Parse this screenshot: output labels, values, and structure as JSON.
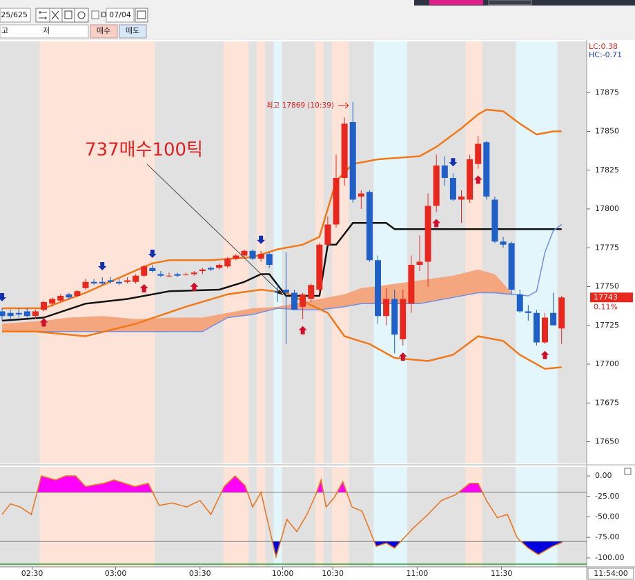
{
  "toolbar": {
    "code_field": "25/625",
    "period_label": "D",
    "date": "07/04",
    "high_label": "고",
    "low_label": "저",
    "buy_button": "매수",
    "sell_button": "매도"
  },
  "chart_data": [
    {
      "type": "candlestick",
      "xlim": [
        -0.25,
        70
      ],
      "ylim": [
        17636,
        17908
      ],
      "yticks": [
        17650,
        17675,
        17700,
        17725,
        17750,
        17775,
        17800,
        17825,
        17850,
        17875
      ],
      "xticks": [
        {
          "value": 3.6,
          "label": "02:30"
        },
        {
          "value": 13.6,
          "label": "03:00"
        },
        {
          "value": 23.7,
          "label": "03:30"
        },
        {
          "value": 33.6,
          "label": "10:00"
        },
        {
          "value": 39.6,
          "label": "10:30"
        },
        {
          "value": 49.7,
          "label": "11:00"
        },
        {
          "value": 59.8,
          "label": "11:30"
        }
      ],
      "time_label": "11:54:00",
      "lc": "LC:0.38",
      "hc": "HC:-0.71",
      "last_price": 17743,
      "change": "0.11%",
      "annotation": "737매수100틱",
      "high_note": "최고 17869 (10:39)",
      "up_color": "#e8281e",
      "down_color": "#1f5fc8",
      "open": [
        17734,
        17733,
        17733,
        17734,
        17731,
        17735,
        17739,
        17741,
        17745,
        17744,
        17749,
        17753,
        17753,
        17754,
        17753,
        17753,
        17753,
        17757,
        17762,
        17758,
        17757,
        17758,
        17758,
        17758,
        17760,
        17762,
        17762,
        17763,
        17768,
        17770,
        17773,
        17768,
        17771,
        17747,
        17748,
        17746,
        17737,
        17742,
        17748,
        17777,
        17790,
        17820,
        17856,
        17808,
        17811,
        17767,
        17731,
        17742,
        17716,
        17739,
        17764,
        17766,
        17802,
        17828,
        17820,
        17806,
        17806,
        17829,
        17843,
        17806,
        17779,
        17778,
        17745,
        17734,
        17733,
        17714,
        17733,
        17723
      ],
      "high": [
        17736,
        17735,
        17736,
        17736,
        17735,
        17741,
        17743,
        17745,
        17746,
        17748,
        17755,
        17755,
        17756,
        17756,
        17755,
        17756,
        17758,
        17764,
        17764,
        17760,
        17759,
        17759,
        17759,
        17760,
        17762,
        17763,
        17765,
        17769,
        17771,
        17774,
        17774,
        17773,
        17772,
        17752,
        17772,
        17748,
        17746,
        17752,
        17778,
        17795,
        17835,
        17859,
        17869,
        17812,
        17812,
        17770,
        17749,
        17748,
        17748,
        17770,
        17783,
        17810,
        17835,
        17834,
        17823,
        17812,
        17835,
        17847,
        17844,
        17808,
        17782,
        17779,
        17748,
        17738,
        17735,
        17733,
        17746,
        17744
      ],
      "low": [
        17728,
        17729,
        17730,
        17730,
        17729,
        17734,
        17737,
        17740,
        17742,
        17743,
        17748,
        17751,
        17751,
        17752,
        17751,
        17752,
        17752,
        17756,
        17759,
        17756,
        17756,
        17756,
        17757,
        17757,
        17758,
        17760,
        17761,
        17762,
        17767,
        17769,
        17767,
        17766,
        17762,
        17740,
        17713,
        17735,
        17729,
        17740,
        17746,
        17776,
        17788,
        17815,
        17804,
        17800,
        17766,
        17726,
        17725,
        17707,
        17712,
        17733,
        17760,
        17750,
        17798,
        17815,
        17805,
        17791,
        17804,
        17826,
        17806,
        17778,
        17775,
        17745,
        17733,
        17728,
        17712,
        17713,
        17725,
        17713
      ],
      "close": [
        17731,
        17731,
        17732,
        17731,
        17734,
        17740,
        17742,
        17744,
        17743,
        17747,
        17753,
        17752,
        17752,
        17753,
        17752,
        17754,
        17757,
        17763,
        17760,
        17757,
        17757,
        17757,
        17758,
        17759,
        17761,
        17761,
        17764,
        17768,
        17770,
        17773,
        17768,
        17771,
        17764,
        17746,
        17746,
        17735,
        17745,
        17751,
        17777,
        17790,
        17820,
        17855,
        17806,
        17810,
        17767,
        17731,
        17742,
        17719,
        17742,
        17764,
        17766,
        17802,
        17828,
        17820,
        17806,
        17808,
        17832,
        17842,
        17808,
        17779,
        17777,
        17748,
        17734,
        17733,
        17714,
        17730,
        17725,
        17743
      ],
      "buy_signals": [
        5,
        17,
        23,
        36,
        48,
        52,
        57,
        65
      ],
      "sell_signals": [
        0,
        12,
        18,
        31,
        54
      ],
      "cloud": {
        "color": "#f4a67f",
        "x": [
          0,
          5,
          8,
          12,
          16,
          20,
          24,
          27,
          30,
          33,
          36,
          38,
          41,
          43,
          46,
          50,
          54,
          57,
          59,
          61
        ],
        "span_a": [
          17726,
          17728,
          17730,
          17731,
          17729,
          17730,
          17730,
          17733,
          17736,
          17737,
          17740,
          17742,
          17745,
          17749,
          17751,
          17754,
          17757,
          17761,
          17758,
          17746
        ],
        "span_b": [
          17721,
          17721,
          17721,
          17721,
          17721,
          17721,
          17721,
          17730,
          17732,
          17736,
          17735,
          17735,
          17737,
          17739,
          17739,
          17739,
          17743,
          17746,
          17746,
          17745
        ],
        "span_b_color": "#6f8fe6"
      },
      "upper_band": {
        "color": "#f07818",
        "x": [
          0,
          5,
          10,
          15,
          18,
          20,
          25,
          30,
          33,
          36,
          38,
          40,
          42,
          45,
          50,
          52,
          55,
          57,
          58,
          60,
          62,
          64,
          66,
          67
        ],
        "values": [
          17736,
          17736,
          17746,
          17758,
          17765,
          17767,
          17767,
          17769,
          17774,
          17777,
          17782,
          17818,
          17829,
          17832,
          17834,
          17840,
          17852,
          17861,
          17864,
          17863,
          17855,
          17848,
          17850,
          17850
        ]
      },
      "lower_band": {
        "color": "#f07818",
        "x": [
          0,
          4,
          10,
          16,
          22,
          27,
          31,
          34,
          37,
          39,
          41,
          44,
          47,
          51,
          54,
          57,
          60,
          62,
          65,
          67
        ],
        "values": [
          17721,
          17721,
          17718,
          17726,
          17737,
          17745,
          17748,
          17746,
          17738,
          17733,
          17718,
          17713,
          17704,
          17702,
          17706,
          17718,
          17715,
          17706,
          17697,
          17698
        ]
      },
      "middle_line": {
        "color": "#111111",
        "x": [
          0,
          5,
          10,
          15,
          20,
          26,
          29,
          31,
          32,
          34,
          38,
          39,
          40,
          42,
          46,
          47,
          67
        ],
        "values": [
          17728,
          17730,
          17739,
          17742,
          17747,
          17748,
          17753,
          17758,
          17758,
          17744,
          17744,
          17777,
          17777,
          17791,
          17791,
          17787,
          17787
        ]
      },
      "lagging_line": {
        "color": "#6f8fe6",
        "x": [
          59,
          61,
          63,
          64,
          65,
          66,
          67
        ],
        "values": [
          17746,
          17745,
          17744,
          17747,
          17772,
          17786,
          17790
        ]
      },
      "shading": [
        {
          "from": 4.5,
          "to": 18.3,
          "color": "#fde3d8"
        },
        {
          "from": 26.5,
          "to": 29.5,
          "color": "#fde3d8"
        },
        {
          "from": 30.5,
          "to": 31.5,
          "color": "#fde3d8"
        },
        {
          "from": 32.5,
          "to": 33.5,
          "color": "#e2f6fc"
        },
        {
          "from": 37.5,
          "to": 38.5,
          "color": "#fde3d8"
        },
        {
          "from": 39.5,
          "to": 41.5,
          "color": "#fde3d8"
        },
        {
          "from": 44.5,
          "to": 48.5,
          "color": "#e2f6fc"
        },
        {
          "from": 55.5,
          "to": 57.5,
          "color": "#fde3d8"
        },
        {
          "from": 61.5,
          "to": 66.5,
          "color": "#e2f6fc"
        }
      ]
    },
    {
      "type": "line",
      "xlim": [
        -0.25,
        70
      ],
      "ylim": [
        -111,
        11
      ],
      "yticks": [
        {
          "value": 0,
          "label": "0.00"
        },
        {
          "value": -25,
          "label": "-25.00"
        },
        {
          "value": -50,
          "label": "-50.00"
        },
        {
          "value": -75,
          "label": "-75.00"
        },
        {
          "value": -100,
          "label": "-100.00"
        }
      ],
      "levels": [
        -20,
        -80
      ],
      "fill_colors": [
        "#ff00ff",
        "#0000e0"
      ],
      "color": "#e87722",
      "x": [
        0,
        1,
        2.2,
        3.5,
        4.7,
        6.4,
        7.6,
        8.8,
        10,
        12.2,
        13.4,
        15.9,
        17.5,
        18.8,
        20.4,
        22.1,
        23.7,
        25,
        26.6,
        27.9,
        29.1,
        30,
        31,
        32.8,
        34.1,
        35.3,
        36.5,
        37.6,
        38.2,
        38.8,
        39.8,
        40.8,
        41.9,
        43.1,
        44.8,
        46,
        47,
        48.1,
        49.3,
        51,
        52.6,
        54.3,
        56,
        57,
        58,
        59.3,
        60.5,
        61.7,
        63,
        64.2,
        65.9,
        67.1
      ],
      "values": [
        -47,
        -34,
        -38,
        -47,
        0,
        -5,
        0,
        0,
        -13,
        -9,
        -5,
        -13,
        -9,
        -36,
        -33,
        -38,
        -30,
        -47,
        -13,
        0,
        -12,
        -38,
        -20,
        -99,
        -53,
        -68,
        -47,
        -22,
        -5,
        -38,
        -26,
        -7,
        -38,
        -43,
        -86,
        -82,
        -88,
        -76,
        -63,
        -47,
        -30,
        -23,
        -9,
        -9,
        -30,
        -51,
        -47,
        -76,
        -88,
        -96,
        -86,
        -81
      ]
    }
  ]
}
